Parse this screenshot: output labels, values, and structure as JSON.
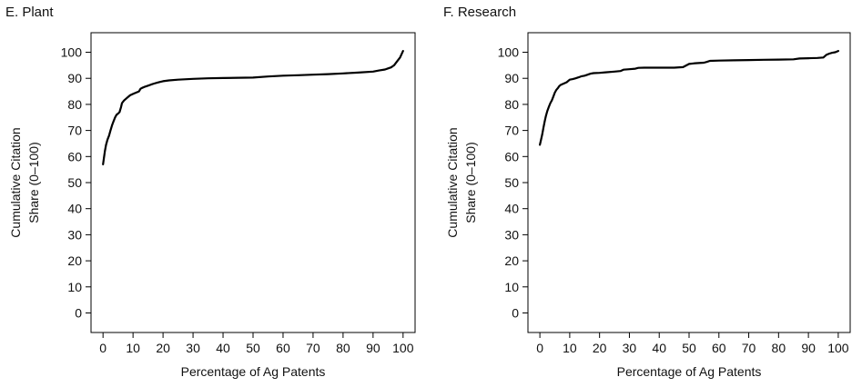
{
  "chart_data": [
    {
      "type": "line",
      "title": "E. Plant",
      "xlabel": "Percentage of Ag Patents",
      "ylabel": [
        "Cumulative Citation",
        "Share (0–100)"
      ],
      "xlim": [
        -4,
        104
      ],
      "ylim": [
        -7.5,
        107.5
      ],
      "xticks": [
        0,
        10,
        20,
        30,
        40,
        50,
        60,
        70,
        80,
        90,
        100
      ],
      "yticks": [
        0,
        10,
        20,
        30,
        40,
        50,
        60,
        70,
        80,
        90,
        100
      ],
      "grid": false,
      "line_color": "#000000",
      "x": [
        0,
        0.3,
        0.6,
        1,
        1.5,
        2,
        2.5,
        3,
        3.5,
        4,
        4.5,
        5,
        5.5,
        6,
        6.3,
        7,
        8,
        9,
        10,
        11,
        12,
        12.5,
        13,
        14,
        15,
        16,
        17,
        18,
        19,
        20,
        22,
        25,
        30,
        35,
        40,
        45,
        50,
        55,
        60,
        65,
        70,
        75,
        80,
        85,
        90,
        92,
        94,
        95,
        96,
        97,
        98,
        99,
        100
      ],
      "y": [
        57,
        59.5,
        62,
        64.5,
        66.5,
        68,
        70,
        72,
        73.5,
        75,
        76,
        76.5,
        77,
        79,
        80.5,
        81.5,
        82.5,
        83.5,
        84,
        84.5,
        85,
        86,
        86.3,
        86.8,
        87.2,
        87.6,
        88,
        88.3,
        88.6,
        88.9,
        89.2,
        89.5,
        89.8,
        90,
        90.1,
        90.2,
        90.3,
        90.7,
        91,
        91.2,
        91.4,
        91.6,
        91.9,
        92.2,
        92.6,
        93,
        93.4,
        93.8,
        94.2,
        95,
        96.5,
        98,
        100.5
      ]
    },
    {
      "type": "line",
      "title": "F. Research",
      "xlabel": "Percentage of Ag Patents",
      "ylabel": [
        "Cumulative Citation",
        "Share (0–100)"
      ],
      "xlim": [
        -4,
        104
      ],
      "ylim": [
        -7.5,
        107.5
      ],
      "xticks": [
        0,
        10,
        20,
        30,
        40,
        50,
        60,
        70,
        80,
        90,
        100
      ],
      "yticks": [
        0,
        10,
        20,
        30,
        40,
        50,
        60,
        70,
        80,
        90,
        100
      ],
      "grid": false,
      "line_color": "#000000",
      "x": [
        0,
        0.4,
        0.8,
        1.2,
        1.6,
        2,
        2.5,
        3,
        3.5,
        4,
        4.5,
        5,
        5.5,
        6,
        6.5,
        7,
        8,
        9,
        10,
        11,
        12,
        13,
        14,
        15,
        16,
        17,
        18,
        20,
        22,
        25,
        27,
        28,
        30,
        32,
        33,
        35,
        38,
        40,
        45,
        48,
        50,
        52,
        55,
        56,
        57,
        60,
        65,
        70,
        75,
        80,
        85,
        87,
        90,
        93,
        95,
        96,
        97,
        98,
        99,
        100
      ],
      "y": [
        64.5,
        66.5,
        68.5,
        71,
        73.5,
        75.5,
        77.5,
        79,
        80.5,
        81.5,
        83,
        84.5,
        85.5,
        86.2,
        87,
        87.5,
        88,
        88.5,
        89.5,
        89.7,
        90,
        90.4,
        90.8,
        91,
        91.4,
        91.8,
        92,
        92.1,
        92.3,
        92.6,
        92.8,
        93.3,
        93.5,
        93.7,
        94,
        94.1,
        94.1,
        94.1,
        94.1,
        94.3,
        95.5,
        95.8,
        96,
        96.3,
        96.7,
        96.8,
        96.9,
        97,
        97.1,
        97.2,
        97.3,
        97.6,
        97.7,
        97.8,
        98,
        99,
        99.5,
        99.8,
        100,
        100.5
      ]
    }
  ]
}
